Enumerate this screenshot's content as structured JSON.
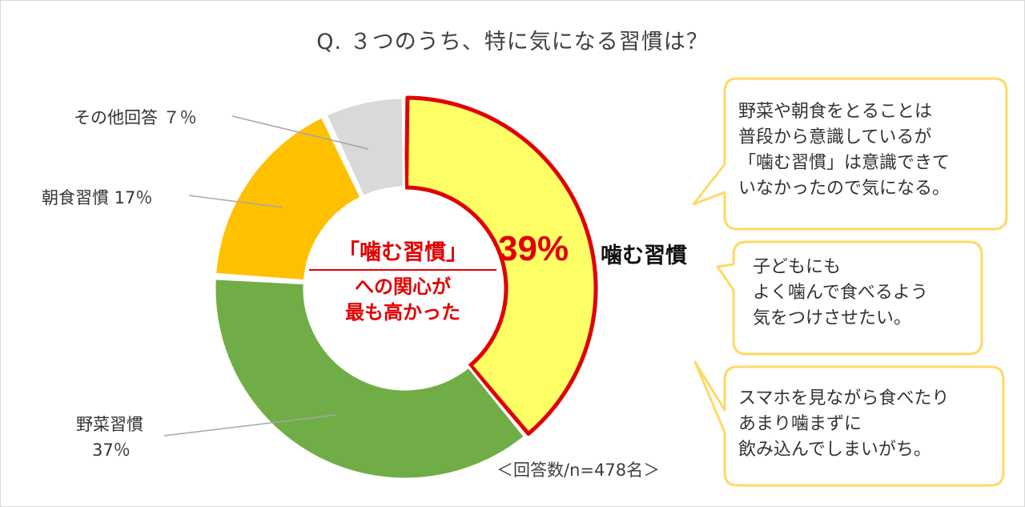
{
  "title": "Q. ３つのうち、特に気になる習慣は？",
  "chart_data": {
    "type": "pie",
    "title": "Q. ３つのうち、特に気になる習慣は？",
    "slices": [
      {
        "name": "噛む習慣",
        "value": 39,
        "color": "#ffff66",
        "highlight": true
      },
      {
        "name": "野菜習慣",
        "value": 37,
        "color": "#70ad47"
      },
      {
        "name": "朝食習慣",
        "value": 17,
        "color": "#ffc000"
      },
      {
        "name": "その他回答",
        "value": 7,
        "color": "#d9d9d9"
      }
    ],
    "unit": "%",
    "donut": true
  },
  "labels": {
    "other": "その他回答 ７％",
    "breakfast": "朝食習慣 17％",
    "veg_name": "野菜習慣",
    "veg_value": "37％",
    "chew_pct": "39%",
    "chew_name": "噛む習慣"
  },
  "center": {
    "line1": "「噛む習慣」",
    "line2": "への関心が",
    "line3": "最も高かった"
  },
  "comments": [
    {
      "lines": [
        "野菜や朝食をとることは",
        "普段から意識しているが",
        "「噛む習慣」は意識できて",
        "いなかったので気になる。"
      ]
    },
    {
      "lines": [
        "子どもにも",
        "よく噛んで食べるよう",
        "気をつけさせたい。"
      ]
    },
    {
      "lines": [
        "スマホを見ながら食べたり",
        "あまり噛まずに",
        "飲み込んでしまいがち。"
      ]
    }
  ],
  "footnote": "＜回答数/n=478名＞",
  "colors": {
    "highlight_border": "#e10000",
    "bubble_border": "#ffd966",
    "label_accent": "#e10000"
  }
}
